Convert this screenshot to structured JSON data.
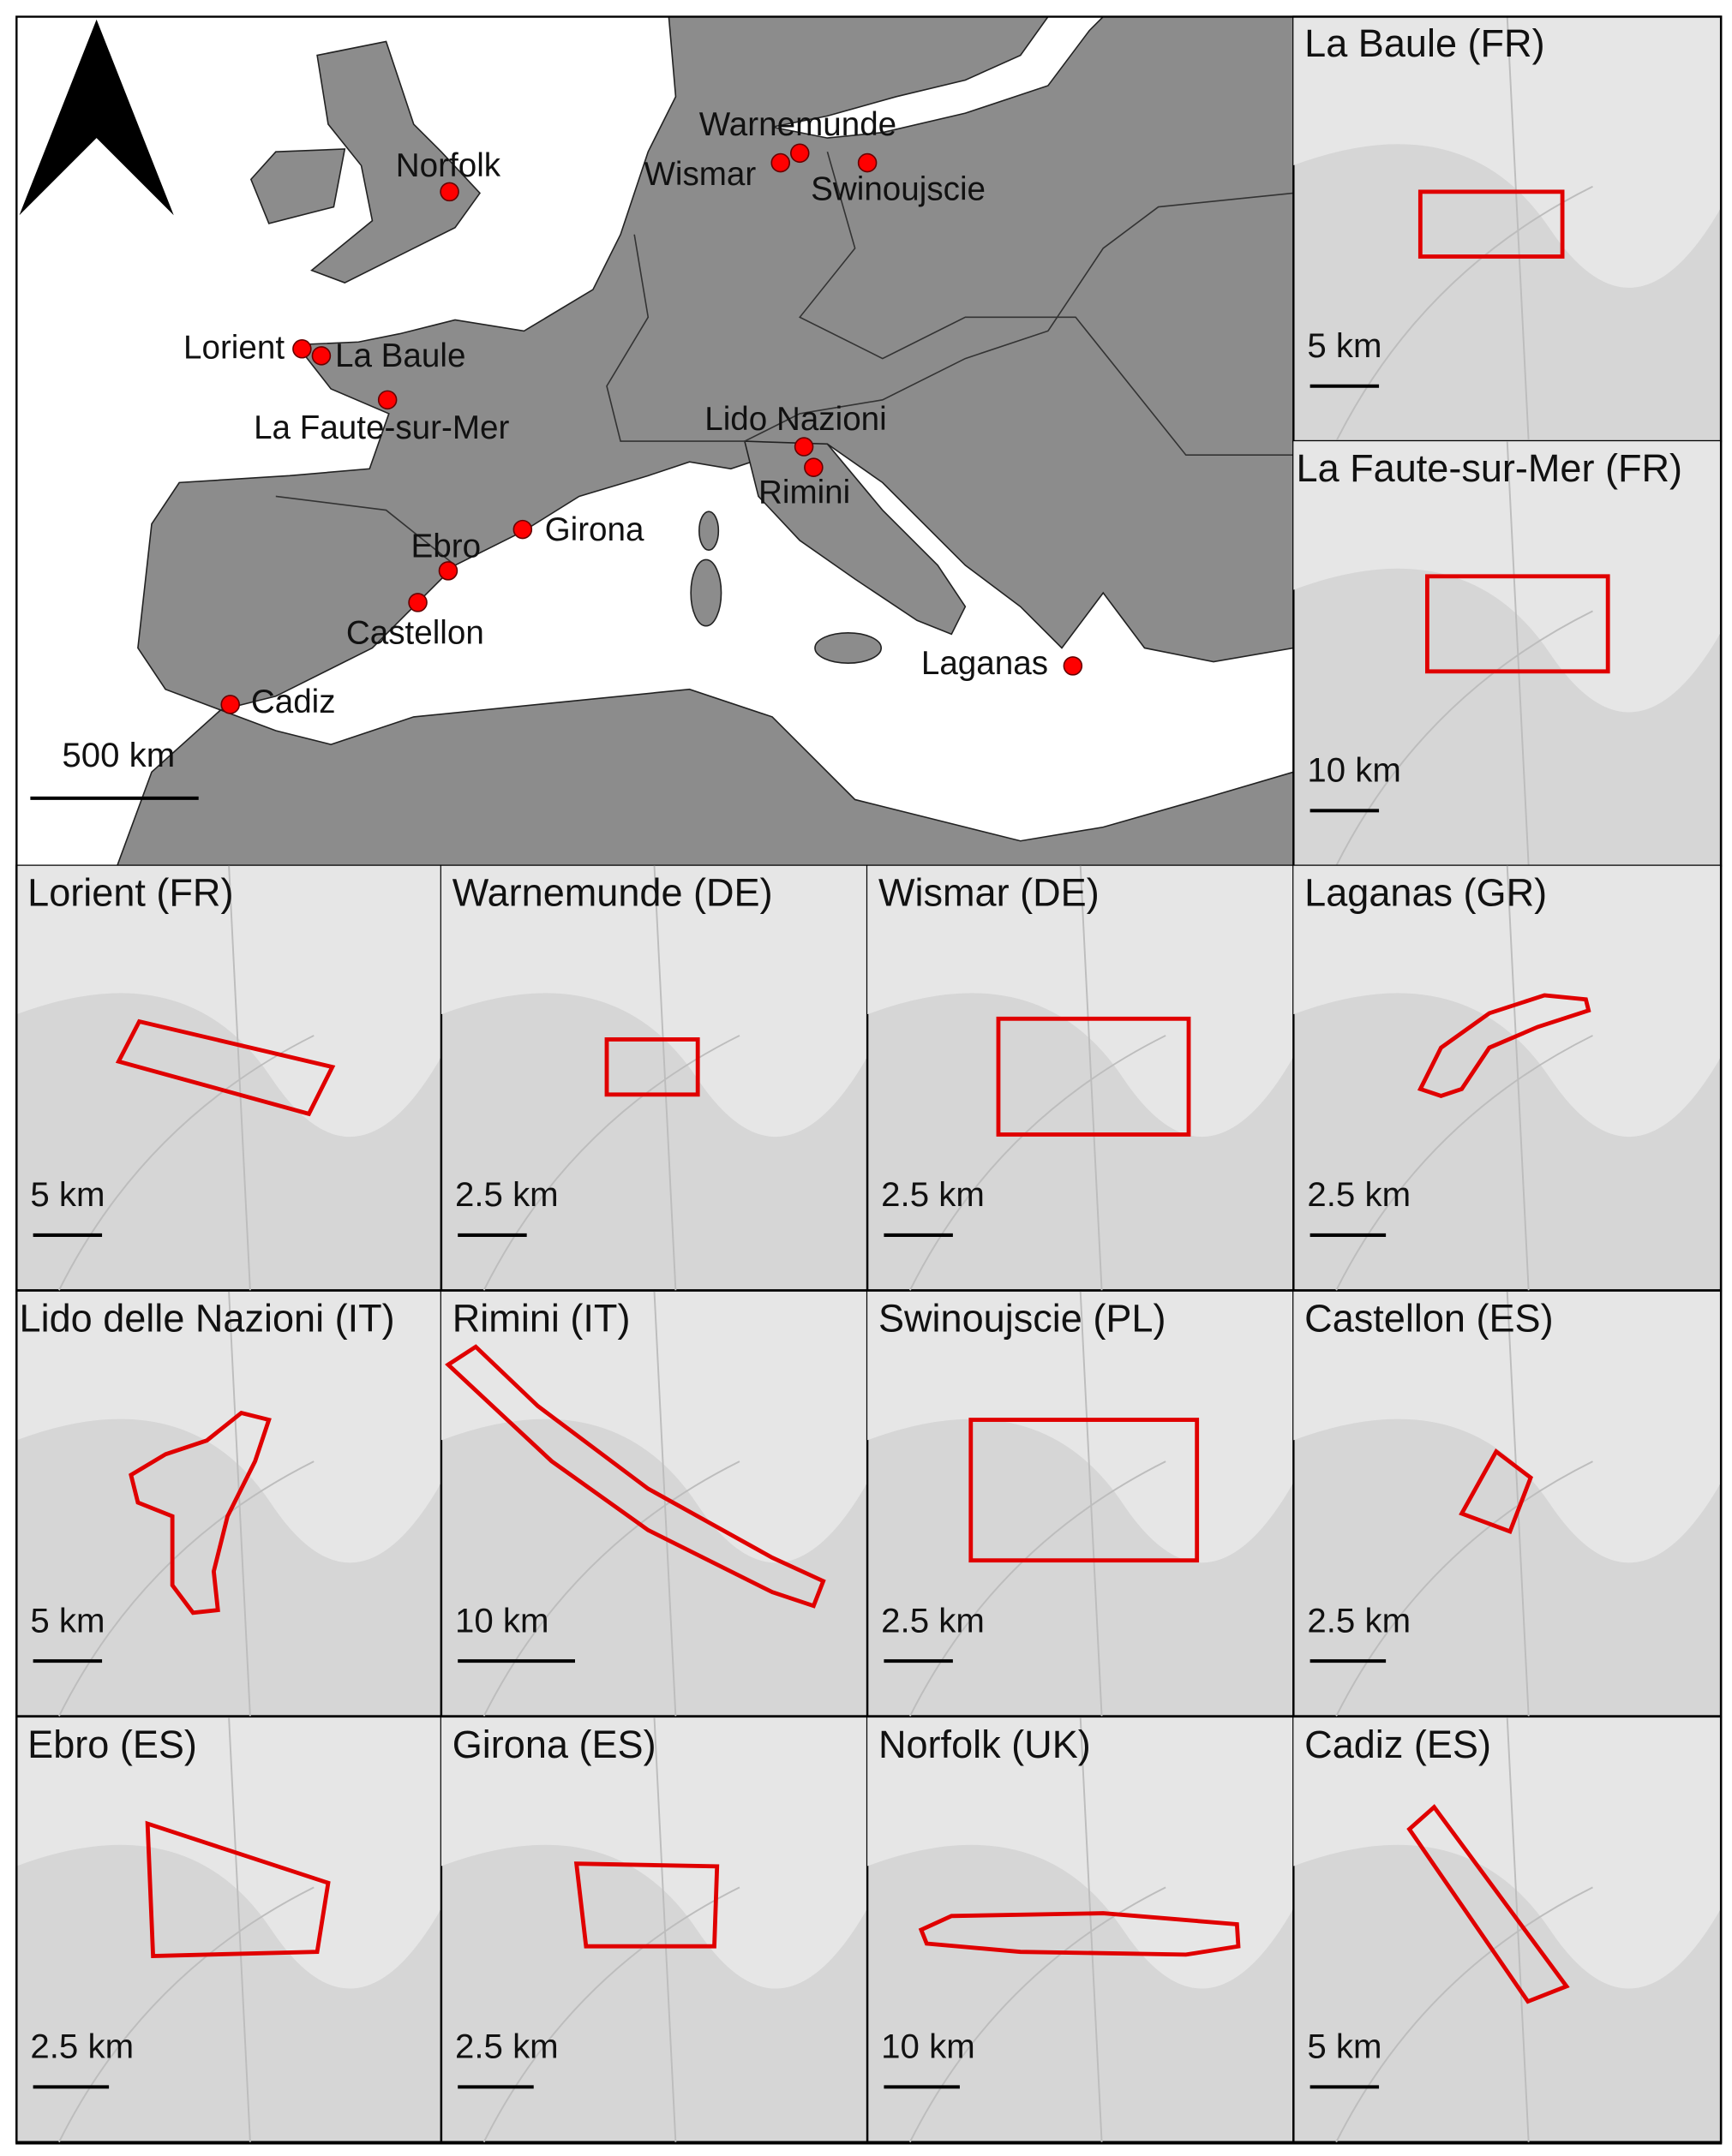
{
  "colors": {
    "land": "#8c8c8c",
    "sea": "#ffffff",
    "inset_bg": "#d6d6d6",
    "marker": "#ff0000",
    "outline": "#e00000"
  },
  "overview": {
    "north_arrow_icon": "north-arrow",
    "scale_label": "500 km",
    "sites": [
      {
        "name": "Norfolk"
      },
      {
        "name": "Warnemunde"
      },
      {
        "name": "Wismar"
      },
      {
        "name": "Swinoujscie"
      },
      {
        "name": "Lorient"
      },
      {
        "name": "La Baule"
      },
      {
        "name": "La Faute-sur-Mer"
      },
      {
        "name": "Lido Nazioni"
      },
      {
        "name": "Rimini"
      },
      {
        "name": "Girona"
      },
      {
        "name": "Ebro"
      },
      {
        "name": "Castellon"
      },
      {
        "name": "Cadiz"
      },
      {
        "name": "Laganas"
      }
    ]
  },
  "insets": [
    {
      "title": "La Baule (FR)",
      "scale": "5 km"
    },
    {
      "title": "La Faute-sur-Mer (FR)",
      "scale": "10 km"
    },
    {
      "title": "Lorient (FR)",
      "scale": "5 km"
    },
    {
      "title": "Warnemunde (DE)",
      "scale": "2.5 km"
    },
    {
      "title": "Wismar (DE)",
      "scale": "2.5 km"
    },
    {
      "title": "Laganas (GR)",
      "scale": "2.5 km"
    },
    {
      "title": "Lido delle Nazioni (IT)",
      "scale": "5 km"
    },
    {
      "title": "Rimini (IT)",
      "scale": "10 km"
    },
    {
      "title": "Swinoujscie (PL)",
      "scale": "2.5 km"
    },
    {
      "title": "Castellon (ES)",
      "scale": "2.5 km"
    },
    {
      "title": "Ebro (ES)",
      "scale": "2.5 km"
    },
    {
      "title": "Girona (ES)",
      "scale": "2.5 km"
    },
    {
      "title": "Norfolk (UK)",
      "scale": "10 km"
    },
    {
      "title": "Cadiz (ES)",
      "scale": "5 km"
    }
  ]
}
